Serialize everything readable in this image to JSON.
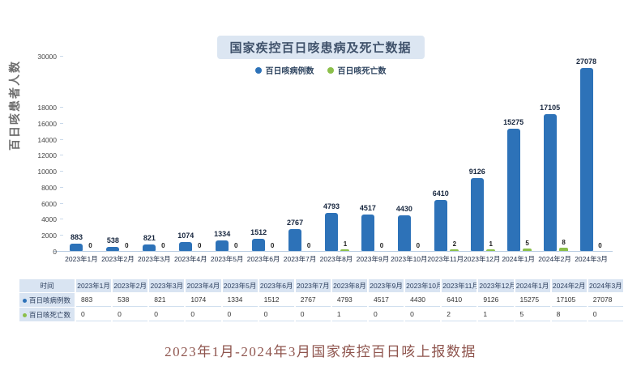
{
  "header": {
    "title": "国家疾控百日咳患病及死亡数据"
  },
  "legend": [
    {
      "label": "百日咳病例数",
      "color": "#2d72b8"
    },
    {
      "label": "百日咳死亡数",
      "color": "#8bbf4a"
    }
  ],
  "chart_data": {
    "type": "bar",
    "title": "国家疾控百日咳患病及死亡数据",
    "xlabel": "",
    "ylabel": "百日咳患者人数",
    "categories": [
      "2023年1月",
      "2023年2月",
      "2023年3月",
      "2023年4月",
      "2023年5月",
      "2023年6月",
      "2023年7月",
      "2023年8月",
      "2023年9月",
      "2023年10月",
      "2023年11月",
      "2023年12月",
      "2024年1月",
      "2024年2月",
      "2024年3月"
    ],
    "series": [
      {
        "name": "百日咳病例数",
        "color": "#2d72b8",
        "values": [
          883,
          538,
          821,
          1074,
          1334,
          1512,
          2767,
          4793,
          4517,
          4430,
          6410,
          9126,
          15275,
          17105,
          27078
        ]
      },
      {
        "name": "百日咳死亡数",
        "color": "#8bbf4a",
        "values": [
          0,
          0,
          0,
          0,
          0,
          0,
          0,
          1,
          0,
          0,
          2,
          1,
          5,
          8,
          0
        ]
      }
    ],
    "y_ticks": [
      0,
      2000,
      4000,
      6000,
      8000,
      10000,
      12000,
      14000,
      16000,
      18000,
      30000
    ],
    "ylim": [
      0,
      30000
    ],
    "axis_break": {
      "from": 18000,
      "to": 30000
    },
    "grid": false,
    "legend_position": "top",
    "data_labels": true
  },
  "table": {
    "corner_label": "时间",
    "rows": [
      {
        "label": "百日咳病例数",
        "dot_color": "#2d72b8"
      },
      {
        "label": "百日咳死亡数",
        "dot_color": "#8bbf4a"
      }
    ]
  },
  "caption": "2023年1月-2024年3月国家疾控百日咳上报数据"
}
